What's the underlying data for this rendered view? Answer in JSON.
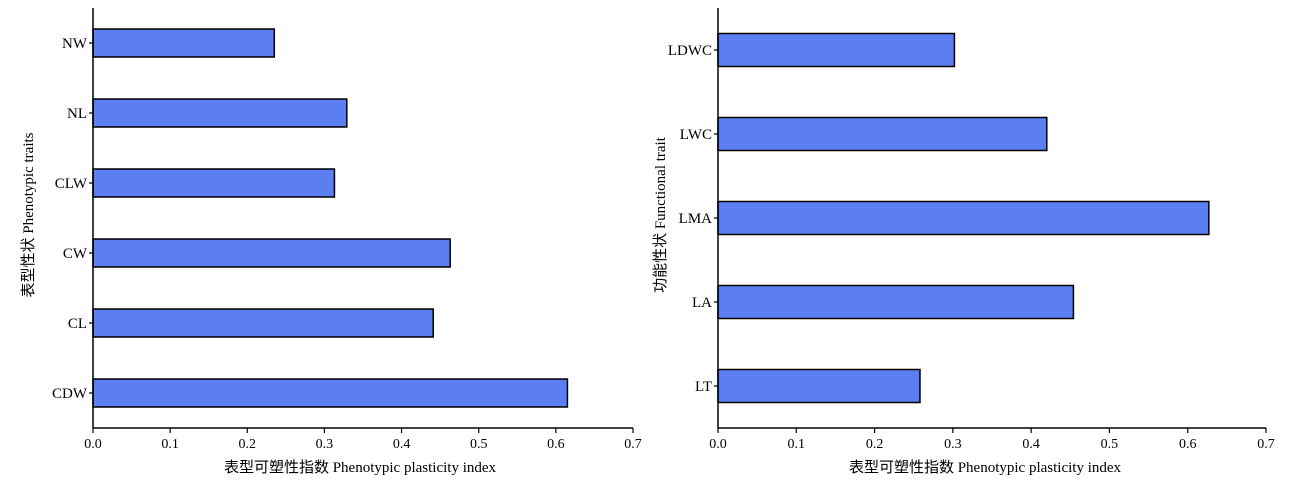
{
  "colors": {
    "bar": "#5b7ff0",
    "bar_stroke": "#000000",
    "axis": "#000000"
  },
  "chart_data": [
    {
      "type": "bar",
      "orientation": "horizontal",
      "categories": [
        "NW",
        "NL",
        "CLW",
        "CW",
        "CL",
        "CDW"
      ],
      "values": [
        0.235,
        0.329,
        0.313,
        0.463,
        0.441,
        0.615
      ],
      "xlabel": "表型可塑性指数 Phenotypic plasticity index",
      "ylabel": "表型性状 Phenotypic traits",
      "xlim": [
        0,
        0.7
      ],
      "xticks": [
        "0.0",
        "0.1",
        "0.2",
        "0.3",
        "0.4",
        "0.5",
        "0.6",
        "0.7"
      ]
    },
    {
      "type": "bar",
      "orientation": "horizontal",
      "categories": [
        "LDWC",
        "LWC",
        "LMA",
        "LA",
        "LT"
      ],
      "values": [
        0.302,
        0.42,
        0.627,
        0.454,
        0.258
      ],
      "xlabel": "表型可塑性指数 Phenotypic plasticity index",
      "ylabel": "功能性状 Functional trait",
      "xlim": [
        0,
        0.7
      ],
      "xticks": [
        "0.0",
        "0.1",
        "0.2",
        "0.3",
        "0.4",
        "0.5",
        "0.6",
        "0.7"
      ]
    }
  ]
}
